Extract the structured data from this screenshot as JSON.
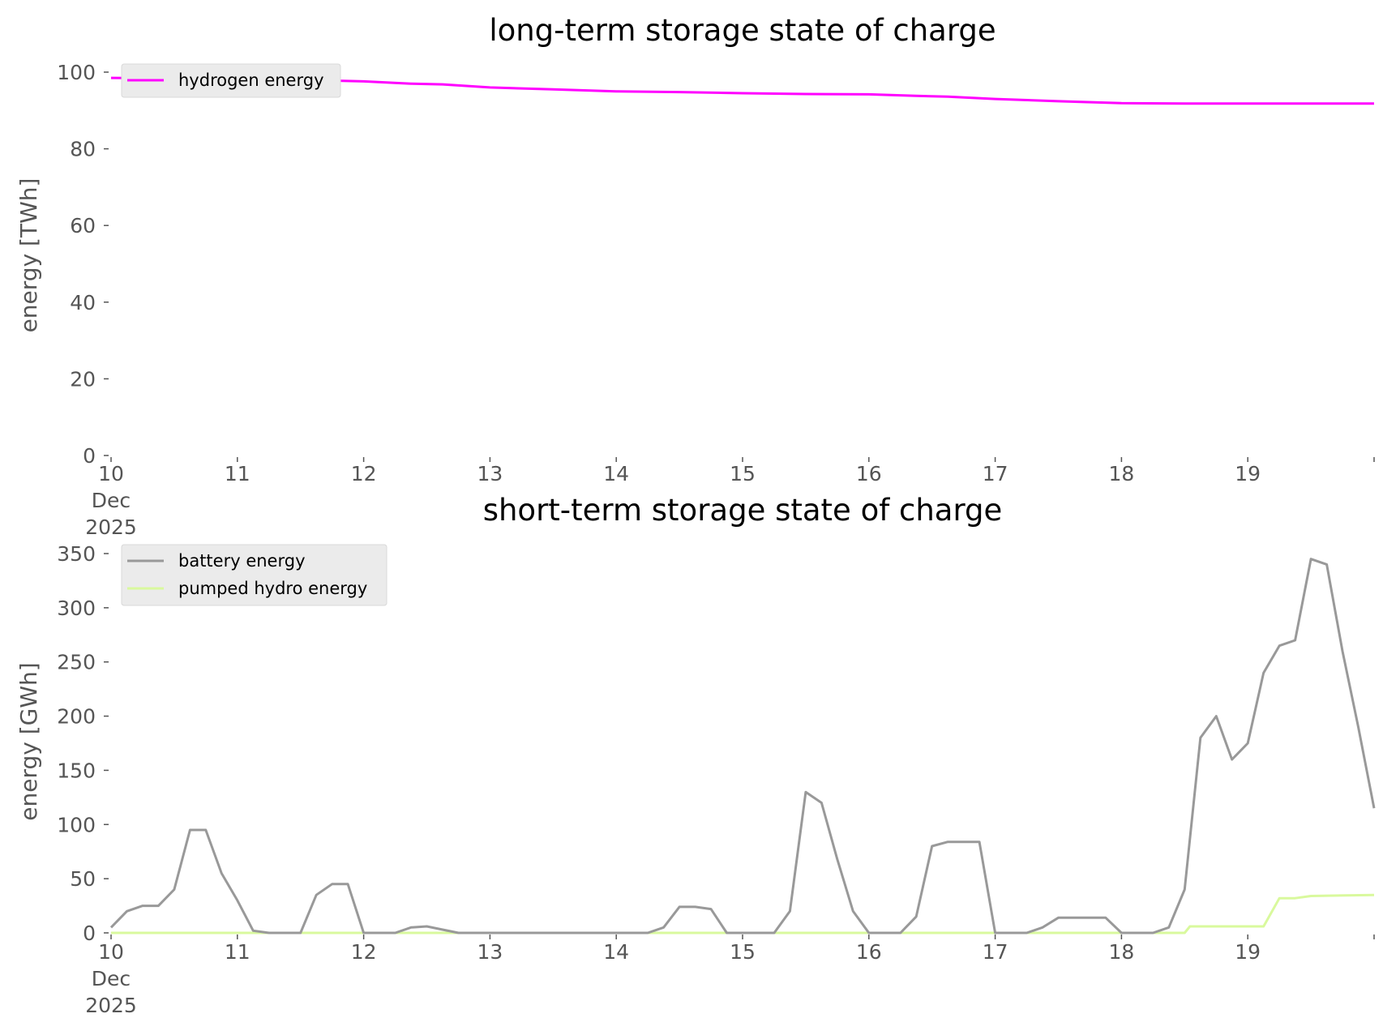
{
  "chart_data": [
    {
      "type": "line",
      "title": "long-term storage state of charge",
      "ylabel": "energy [TWh]",
      "xlabel": "",
      "ylim": [
        0,
        100
      ],
      "xlim": [
        "2025-12-10",
        "2025-12-20"
      ],
      "yticks": [
        "0",
        "20",
        "40",
        "60",
        "80",
        "100"
      ],
      "xticks": [
        "10",
        "11",
        "12",
        "13",
        "14",
        "15",
        "16",
        "17",
        "18",
        "19"
      ],
      "xtick_sublabels": [
        "Dec",
        "2025"
      ],
      "grid": false,
      "legend": "top-left",
      "series": [
        {
          "name": "hydrogen energy",
          "color": "#ff00ff",
          "x": [
            "2025-12-10",
            "2025-12-10 12:00",
            "2025-12-11",
            "2025-12-11 12:00",
            "2025-12-12",
            "2025-12-12 09:00",
            "2025-12-12 15:00",
            "2025-12-13",
            "2025-12-13 12:00",
            "2025-12-14",
            "2025-12-14 12:00",
            "2025-12-15",
            "2025-12-15 12:00",
            "2025-12-16",
            "2025-12-16 09:00",
            "2025-12-16 15:00",
            "2025-12-17",
            "2025-12-17 12:00",
            "2025-12-18",
            "2025-12-18 12:00",
            "2025-12-19",
            "2025-12-19 12:00",
            "2025-12-20"
          ],
          "values": [
            98.5,
            98.4,
            98.2,
            98.0,
            97.6,
            97.0,
            96.8,
            96.0,
            95.5,
            95.0,
            94.8,
            94.5,
            94.3,
            94.2,
            93.8,
            93.6,
            93.0,
            92.4,
            91.9,
            91.8,
            91.8,
            91.8,
            91.8
          ]
        }
      ]
    },
    {
      "type": "line",
      "title": "short-term storage state of charge",
      "ylabel": "energy [GWh]",
      "xlabel": "",
      "ylim": [
        0,
        350
      ],
      "xlim": [
        "2025-12-10",
        "2025-12-20"
      ],
      "yticks": [
        "0",
        "50",
        "100",
        "150",
        "200",
        "250",
        "300",
        "350"
      ],
      "xticks": [
        "10",
        "11",
        "12",
        "13",
        "14",
        "15",
        "16",
        "17",
        "18",
        "19"
      ],
      "xtick_sublabels": [
        "Dec",
        "2025"
      ],
      "grid": false,
      "legend": "top-left",
      "series": [
        {
          "name": "battery energy",
          "color": "#999999",
          "x": [
            "2025-12-10 00:00",
            "2025-12-10 03:00",
            "2025-12-10 06:00",
            "2025-12-10 09:00",
            "2025-12-10 12:00",
            "2025-12-10 15:00",
            "2025-12-10 18:00",
            "2025-12-10 21:00",
            "2025-12-11 00:00",
            "2025-12-11 03:00",
            "2025-12-11 06:00",
            "2025-12-11 09:00",
            "2025-12-11 12:00",
            "2025-12-11 15:00",
            "2025-12-11 18:00",
            "2025-12-11 21:00",
            "2025-12-12 00:00",
            "2025-12-12 03:00",
            "2025-12-12 06:00",
            "2025-12-12 09:00",
            "2025-12-12 12:00",
            "2025-12-12 15:00",
            "2025-12-12 18:00",
            "2025-12-12 21:00",
            "2025-12-13 00:00",
            "2025-12-13 12:00",
            "2025-12-14 00:00",
            "2025-12-14 06:00",
            "2025-12-14 09:00",
            "2025-12-14 12:00",
            "2025-12-14 15:00",
            "2025-12-14 18:00",
            "2025-12-14 21:00",
            "2025-12-15 00:00",
            "2025-12-15 06:00",
            "2025-12-15 09:00",
            "2025-12-15 12:00",
            "2025-12-15 15:00",
            "2025-12-15 18:00",
            "2025-12-15 21:00",
            "2025-12-16 00:00",
            "2025-12-16 06:00",
            "2025-12-16 09:00",
            "2025-12-16 12:00",
            "2025-12-16 15:00",
            "2025-12-16 18:00",
            "2025-12-16 21:00",
            "2025-12-17 00:00",
            "2025-12-17 06:00",
            "2025-12-17 09:00",
            "2025-12-17 12:00",
            "2025-12-17 15:00",
            "2025-12-17 18:00",
            "2025-12-17 21:00",
            "2025-12-18 00:00",
            "2025-12-18 06:00",
            "2025-12-18 09:00",
            "2025-12-18 12:00",
            "2025-12-18 15:00",
            "2025-12-18 18:00",
            "2025-12-18 21:00",
            "2025-12-19 00:00",
            "2025-12-19 03:00",
            "2025-12-19 06:00",
            "2025-12-19 09:00",
            "2025-12-19 12:00",
            "2025-12-19 15:00",
            "2025-12-19 18:00",
            "2025-12-19 21:00",
            "2025-12-20 00:00"
          ],
          "values": [
            5,
            20,
            25,
            25,
            40,
            95,
            95,
            55,
            30,
            2,
            0,
            0,
            0,
            35,
            45,
            45,
            0,
            0,
            0,
            5,
            6,
            3,
            0,
            0,
            0,
            0,
            0,
            0,
            5,
            24,
            24,
            22,
            0,
            0,
            0,
            20,
            130,
            120,
            68,
            20,
            0,
            0,
            15,
            80,
            84,
            84,
            84,
            0,
            0,
            5,
            14,
            14,
            14,
            14,
            0,
            0,
            5,
            40,
            180,
            200,
            160,
            175,
            240,
            265,
            270,
            345,
            340,
            260,
            190,
            115
          ]
        },
        {
          "name": "pumped hydro energy",
          "color": "#d9f99d",
          "x": [
            "2025-12-10 00:00",
            "2025-12-18 12:00",
            "2025-12-18 13:00",
            "2025-12-19 00:00",
            "2025-12-19 03:00",
            "2025-12-19 06:00",
            "2025-12-19 09:00",
            "2025-12-19 12:00",
            "2025-12-20 00:00"
          ],
          "values": [
            0,
            0,
            6,
            6,
            6,
            32,
            32,
            34,
            35
          ]
        }
      ]
    }
  ]
}
